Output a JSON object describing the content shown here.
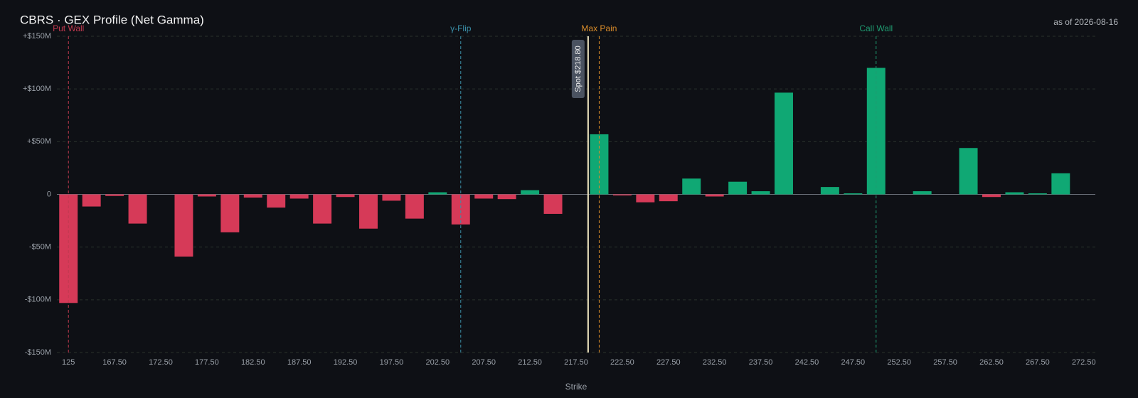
{
  "chart_data": {
    "type": "bar",
    "title": "CBRS · GEX Profile (Net Gamma)",
    "subtitle": "as of 2026-08-16",
    "x_label": "Strike",
    "categories": [
      "125",
      null,
      "167.50",
      null,
      "172.50",
      null,
      "177.50",
      null,
      "182.50",
      null,
      "187.50",
      null,
      "192.50",
      null,
      "197.50",
      null,
      "202.50",
      null,
      "207.50",
      null,
      "212.50",
      null,
      "217.50",
      null,
      "222.50",
      null,
      "227.50",
      null,
      "232.50",
      null,
      "237.50",
      null,
      "242.50",
      null,
      "247.50",
      null,
      "252.50",
      null,
      "257.50",
      null,
      "262.50",
      null,
      "267.50",
      null,
      "272.50"
    ],
    "values": [
      -103,
      -11.5,
      -1.5,
      -27.7,
      0,
      -59,
      -2,
      -36,
      -3,
      -12.5,
      -4,
      -27.7,
      -2.5,
      -32.5,
      -6,
      -23,
      2,
      -28.5,
      -4,
      -4.5,
      4,
      -18.5,
      0,
      57,
      -1,
      -7.5,
      -6.5,
      15,
      -2,
      12,
      3,
      96.5,
      0,
      7,
      1,
      120,
      0,
      3,
      0,
      44,
      -2.5,
      2,
      1,
      20,
      0
    ],
    "positive_color": "#10a874",
    "negative_color": "#d63a58",
    "ylim": [
      -150,
      150
    ],
    "yticks": [
      {
        "value": -150,
        "label": "-$150M"
      },
      {
        "value": -100,
        "label": "-$100M"
      },
      {
        "value": -50,
        "label": "-$50M"
      },
      0,
      {
        "value": 50,
        "label": "+$50M"
      },
      {
        "value": 100,
        "label": "+$100M"
      },
      {
        "value": 150,
        "label": "+$150M"
      }
    ],
    "grid": true,
    "markers": [
      {
        "label": "Put Wall",
        "strike": 125,
        "color": "#c0394f"
      },
      {
        "label": "γ-Flip",
        "strike": 205,
        "color": "#3a8fa8"
      },
      {
        "label": "Max Pain",
        "strike": 220,
        "color": "#d98c2a"
      },
      {
        "label": "Call Wall",
        "strike": 250,
        "color": "#1f9a70"
      }
    ],
    "spot": {
      "value": 218.8,
      "label": "Spot $218.80",
      "color": "#f0e6c0"
    }
  }
}
